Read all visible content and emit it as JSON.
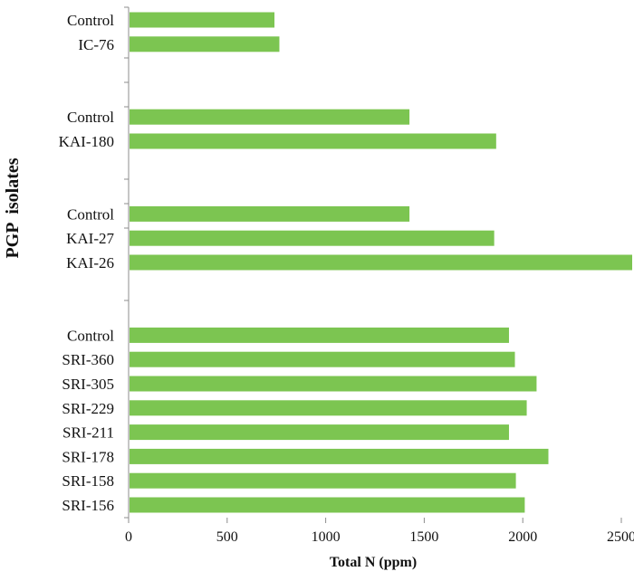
{
  "chart_data": {
    "type": "bar",
    "orientation": "horizontal",
    "title": "",
    "xlabel": "Total N (ppm)",
    "ylabel": "PGP  isolates",
    "xlim": [
      0,
      2600
    ],
    "xticks": [
      0,
      500,
      1000,
      1500,
      2000,
      2500
    ],
    "grid": false,
    "legend": "none",
    "bar_color": "#7cc551",
    "groups": [
      {
        "categories": [
          "Control",
          "IC-76"
        ],
        "values": [
          740,
          765
        ]
      },
      {
        "categories": [
          "Control",
          "KAI-180"
        ],
        "values": [
          1425,
          1865
        ]
      },
      {
        "categories": [
          "Control",
          "KAI-27",
          "KAI-26"
        ],
        "values": [
          1425,
          1855,
          2605
        ]
      },
      {
        "categories": [
          "Control",
          "SRI-360",
          "SRI-305",
          "SRI-229",
          "SRI-211",
          "SRI-178",
          "SRI-158",
          "SRI-156"
        ],
        "values": [
          1930,
          1960,
          2070,
          2020,
          1930,
          2130,
          1965,
          2010
        ]
      }
    ]
  }
}
